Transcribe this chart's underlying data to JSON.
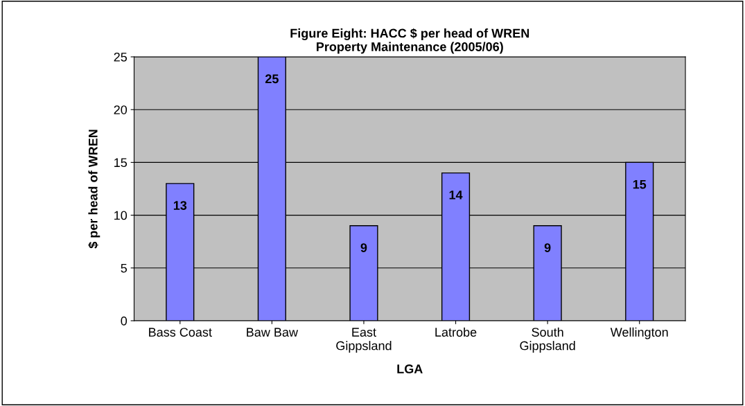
{
  "chart_data": {
    "type": "bar",
    "title": "Figure Eight: HACC $ per head of WREN\nProperty Maintenance (2005/06)",
    "xlabel": "LGA",
    "ylabel": "$ per head of WREN",
    "categories": [
      "Bass Coast",
      "Baw Baw",
      "East\nGippsland",
      "Latrobe",
      "South\nGippsland",
      "Wellington"
    ],
    "values": [
      13,
      25,
      9,
      14,
      9,
      15
    ],
    "color": "#8080ff",
    "data_labels": true,
    "ylim": [
      0,
      25
    ],
    "yticks": [
      0,
      5,
      10,
      15,
      20,
      25
    ],
    "grid": "y",
    "legend": false
  }
}
